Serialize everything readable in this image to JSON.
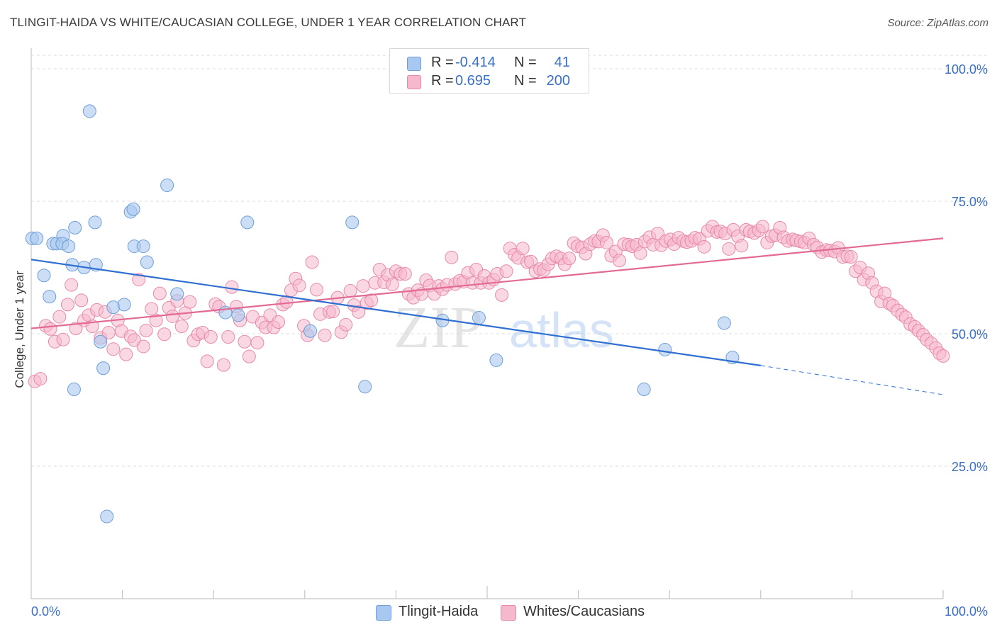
{
  "title": "TLINGIT-HAIDA VS WHITE/CAUCASIAN COLLEGE, UNDER 1 YEAR CORRELATION CHART",
  "source": "Source: ZipAtlas.com",
  "watermark": {
    "zip": "ZIP",
    "atlas": "atlas"
  },
  "legend": {
    "rows": [
      {
        "r_label": "R =",
        "r_value": "-0.414",
        "n_label": "N =",
        "n_value": "41",
        "color": "#a9c8ef"
      },
      {
        "r_label": "R =",
        "r_value": "0.695",
        "n_label": "N =",
        "n_value": "200",
        "color": "#f5b8cc"
      }
    ]
  },
  "bottom_legend": [
    {
      "label": "Tlingit-Haida",
      "color": "#a9c8ef"
    },
    {
      "label": "Whites/Caucasians",
      "color": "#f5b8cc"
    }
  ],
  "chart_data": {
    "type": "scatter",
    "title": "TLINGIT-HAIDA VS WHITE/CAUCASIAN COLLEGE, UNDER 1 YEAR CORRELATION CHART",
    "xlabel": "",
    "ylabel": "College, Under 1 year",
    "xlim": [
      0,
      100
    ],
    "ylim": [
      0,
      102
    ],
    "x_tick_labels": [
      "0.0%",
      "100.0%"
    ],
    "y_ticks": [
      25,
      50,
      75,
      100
    ],
    "y_tick_labels": [
      "25.0%",
      "50.0%",
      "75.0%",
      "100.0%"
    ],
    "grid": "horizontal dashed",
    "legend_placement": "top-center",
    "series": [
      {
        "name": "Tlingit-Haida",
        "color": "#a9c8ef",
        "stroke": "#6f9fd8",
        "points": [
          [
            0.1,
            68
          ],
          [
            0.6,
            68
          ],
          [
            2.4,
            67
          ],
          [
            1.4,
            61
          ],
          [
            2.0,
            57
          ],
          [
            2.8,
            67
          ],
          [
            3.5,
            68.5
          ],
          [
            3.4,
            67
          ],
          [
            4.1,
            66.5
          ],
          [
            4.5,
            63
          ],
          [
            4.7,
            39.5
          ],
          [
            4.8,
            70
          ],
          [
            5.8,
            62.5
          ],
          [
            6.4,
            92
          ],
          [
            7.1,
            63
          ],
          [
            7.0,
            71
          ],
          [
            7.6,
            48.5
          ],
          [
            7.9,
            43.5
          ],
          [
            8.3,
            15.5
          ],
          [
            9.0,
            55
          ],
          [
            10.2,
            55.5
          ],
          [
            10.9,
            73
          ],
          [
            11.2,
            73.5
          ],
          [
            11.3,
            66.5
          ],
          [
            12.3,
            66.5
          ],
          [
            12.7,
            63.5
          ],
          [
            14.9,
            78
          ],
          [
            16.0,
            57.5
          ],
          [
            21.3,
            54
          ],
          [
            22.7,
            53.5
          ],
          [
            23.7,
            71
          ],
          [
            30.6,
            50.5
          ],
          [
            35.2,
            71
          ],
          [
            36.6,
            40
          ],
          [
            45.1,
            52.5
          ],
          [
            49.1,
            53
          ],
          [
            51.0,
            45
          ],
          [
            69.5,
            47
          ],
          [
            67.2,
            39.5
          ],
          [
            76.0,
            52
          ],
          [
            76.9,
            45.5
          ]
        ],
        "trend": {
          "x": [
            0,
            80,
            100
          ],
          "y": [
            64,
            44,
            38.5
          ],
          "solid_until": 80
        }
      },
      {
        "name": "Whites/Caucasians",
        "color": "#f5b8cc",
        "stroke": "#e68aa8",
        "points": [
          [
            0.4,
            41
          ],
          [
            1.0,
            41.5
          ],
          [
            1.6,
            51.5
          ],
          [
            2.1,
            50.9
          ],
          [
            2.6,
            48.5
          ],
          [
            3.1,
            53.2
          ],
          [
            3.5,
            48.9
          ],
          [
            4.0,
            55.5
          ],
          [
            4.4,
            59.2
          ],
          [
            4.9,
            51
          ],
          [
            5.5,
            56.3
          ],
          [
            5.8,
            52.5
          ],
          [
            6.3,
            53.5
          ],
          [
            6.7,
            51.4
          ],
          [
            7.2,
            54.5
          ],
          [
            7.6,
            49.2
          ],
          [
            8.1,
            54.1
          ],
          [
            8.5,
            50.2
          ],
          [
            9.0,
            47.1
          ],
          [
            9.5,
            52.5
          ],
          [
            9.9,
            50.5
          ],
          [
            10.4,
            46.1
          ],
          [
            10.9,
            49.5
          ],
          [
            11.3,
            48.8
          ],
          [
            11.8,
            60.2
          ],
          [
            12.3,
            47.6
          ],
          [
            12.6,
            50.6
          ],
          [
            13.2,
            54.7
          ],
          [
            13.7,
            52.5
          ],
          [
            14.1,
            57.6
          ],
          [
            14.6,
            49.9
          ],
          [
            15.1,
            54.9
          ],
          [
            15.5,
            53.3
          ],
          [
            16.0,
            56.2
          ],
          [
            16.5,
            51.4
          ],
          [
            16.9,
            53.9
          ],
          [
            17.4,
            56
          ],
          [
            17.8,
            48.7
          ],
          [
            18.3,
            49.9
          ],
          [
            18.8,
            50.2
          ],
          [
            19.3,
            44.8
          ],
          [
            19.7,
            49.4
          ],
          [
            20.2,
            55.6
          ],
          [
            20.6,
            55.1
          ],
          [
            21.1,
            44.1
          ],
          [
            21.6,
            49.4
          ],
          [
            22.0,
            58.8
          ],
          [
            22.5,
            55.1
          ],
          [
            22.9,
            52.5
          ],
          [
            23.4,
            48.5
          ],
          [
            23.9,
            45.7
          ],
          [
            24.3,
            53.2
          ],
          [
            24.8,
            48.3
          ],
          [
            25.3,
            52.1
          ],
          [
            25.7,
            51.2
          ],
          [
            26.2,
            53.5
          ],
          [
            26.6,
            51.2
          ],
          [
            27.1,
            52.2
          ],
          [
            27.6,
            55.5
          ],
          [
            28.0,
            56
          ],
          [
            28.5,
            58.2
          ],
          [
            29.0,
            60.4
          ],
          [
            29.4,
            59.1
          ],
          [
            29.9,
            51.5
          ],
          [
            30.3,
            49.7
          ],
          [
            30.8,
            63.5
          ],
          [
            31.3,
            58.3
          ],
          [
            31.7,
            53.7
          ],
          [
            32.2,
            49.7
          ],
          [
            32.7,
            54.1
          ],
          [
            33.1,
            54.2
          ],
          [
            33.6,
            56.8
          ],
          [
            34.0,
            50.3
          ],
          [
            34.5,
            51.7
          ],
          [
            35.0,
            58.1
          ],
          [
            35.4,
            55.4
          ],
          [
            35.9,
            54.1
          ],
          [
            36.4,
            59
          ],
          [
            36.8,
            55.8
          ],
          [
            37.3,
            56.3
          ],
          [
            37.7,
            59.6
          ],
          [
            38.2,
            62.1
          ],
          [
            38.7,
            59.7
          ],
          [
            39.1,
            61.1
          ],
          [
            39.6,
            59.3
          ],
          [
            40.0,
            61.8
          ],
          [
            40.5,
            61.3
          ],
          [
            41.0,
            61.3
          ],
          [
            41.4,
            57.5
          ],
          [
            41.9,
            56.8
          ],
          [
            42.4,
            58.2
          ],
          [
            42.8,
            57.5
          ],
          [
            43.3,
            60.1
          ],
          [
            43.7,
            59.1
          ],
          [
            44.2,
            57.5
          ],
          [
            44.7,
            59
          ],
          [
            45.1,
            58.4
          ],
          [
            45.6,
            59.2
          ],
          [
            46.1,
            64.4
          ],
          [
            46.5,
            59.4
          ],
          [
            47.0,
            60
          ],
          [
            47.4,
            59.8
          ],
          [
            47.9,
            61.5
          ],
          [
            48.4,
            59.6
          ],
          [
            48.8,
            62.1
          ],
          [
            49.3,
            59.6
          ],
          [
            49.7,
            60.9
          ],
          [
            50.2,
            59.6
          ],
          [
            50.7,
            60.2
          ],
          [
            51.1,
            61.3
          ],
          [
            51.6,
            57.3
          ],
          [
            52.1,
            61.8
          ],
          [
            52.5,
            66.1
          ],
          [
            53.0,
            64.9
          ],
          [
            53.4,
            64.3
          ],
          [
            53.9,
            66.1
          ],
          [
            54.4,
            63.5
          ],
          [
            54.8,
            63.6
          ],
          [
            55.3,
            61.8
          ],
          [
            55.8,
            62.2
          ],
          [
            56.2,
            62
          ],
          [
            56.7,
            63.1
          ],
          [
            57.1,
            64.2
          ],
          [
            57.6,
            64.6
          ],
          [
            58.1,
            64.2
          ],
          [
            58.5,
            63.1
          ],
          [
            59.0,
            64.2
          ],
          [
            59.5,
            67.1
          ],
          [
            59.9,
            66.5
          ],
          [
            60.4,
            66.3
          ],
          [
            60.8,
            65.1
          ],
          [
            61.3,
            66.9
          ],
          [
            61.8,
            67.5
          ],
          [
            62.2,
            67.4
          ],
          [
            62.7,
            68.6
          ],
          [
            63.1,
            67.2
          ],
          [
            63.6,
            64.7
          ],
          [
            64.1,
            65.5
          ],
          [
            64.5,
            63.8
          ],
          [
            65.0,
            66.9
          ],
          [
            65.5,
            66.8
          ],
          [
            65.9,
            66.5
          ],
          [
            66.4,
            66.8
          ],
          [
            66.8,
            65.2
          ],
          [
            67.3,
            67.4
          ],
          [
            67.8,
            68.2
          ],
          [
            68.2,
            66.8
          ],
          [
            68.7,
            68.9
          ],
          [
            69.1,
            66.7
          ],
          [
            69.6,
            67.5
          ],
          [
            70.1,
            67.8
          ],
          [
            70.5,
            66.9
          ],
          [
            71.0,
            68.1
          ],
          [
            71.5,
            67.5
          ],
          [
            71.9,
            67.3
          ],
          [
            72.4,
            67.5
          ],
          [
            72.8,
            68.1
          ],
          [
            73.3,
            67.9
          ],
          [
            73.8,
            66.4
          ],
          [
            74.2,
            69.4
          ],
          [
            74.7,
            70.2
          ],
          [
            75.2,
            69.2
          ],
          [
            75.6,
            69.3
          ],
          [
            76.1,
            68.9
          ],
          [
            76.5,
            66
          ],
          [
            77.0,
            69.6
          ],
          [
            77.5,
            68.4
          ],
          [
            77.9,
            66.6
          ],
          [
            78.4,
            69.6
          ],
          [
            78.8,
            69.3
          ],
          [
            79.3,
            69
          ],
          [
            79.8,
            69.5
          ],
          [
            80.2,
            70.2
          ],
          [
            80.7,
            67.2
          ],
          [
            81.2,
            68.4
          ],
          [
            81.6,
            68.6
          ],
          [
            82.1,
            70
          ],
          [
            82.5,
            68.2
          ],
          [
            83.0,
            67.5
          ],
          [
            83.5,
            67.8
          ],
          [
            83.9,
            67.6
          ],
          [
            84.4,
            67.4
          ],
          [
            84.8,
            67.2
          ],
          [
            85.3,
            68
          ],
          [
            85.8,
            66.8
          ],
          [
            86.2,
            66.3
          ],
          [
            86.7,
            65.4
          ],
          [
            87.2,
            65.8
          ],
          [
            87.6,
            65.7
          ],
          [
            88.1,
            65.5
          ],
          [
            88.5,
            66.2
          ],
          [
            89.0,
            64.5
          ],
          [
            89.5,
            64.6
          ],
          [
            89.9,
            64.5
          ],
          [
            90.4,
            61.8
          ],
          [
            90.9,
            62.5
          ],
          [
            91.3,
            60.2
          ],
          [
            91.8,
            61.4
          ],
          [
            92.2,
            59.6
          ],
          [
            92.7,
            58
          ],
          [
            93.2,
            56.1
          ],
          [
            93.6,
            57.6
          ],
          [
            94.1,
            55.7
          ],
          [
            94.5,
            55.3
          ],
          [
            95.0,
            54.4
          ],
          [
            95.5,
            53.6
          ],
          [
            95.9,
            53.1
          ],
          [
            96.4,
            51.8
          ],
          [
            96.9,
            51.3
          ],
          [
            97.3,
            50.6
          ],
          [
            97.8,
            49.8
          ],
          [
            98.2,
            48.9
          ],
          [
            98.7,
            48.2
          ],
          [
            99.2,
            47.3
          ],
          [
            99.6,
            46.3
          ],
          [
            100.0,
            45.8
          ]
        ],
        "trend": {
          "x": [
            0,
            100
          ],
          "y": [
            51,
            68
          ]
        }
      }
    ]
  }
}
